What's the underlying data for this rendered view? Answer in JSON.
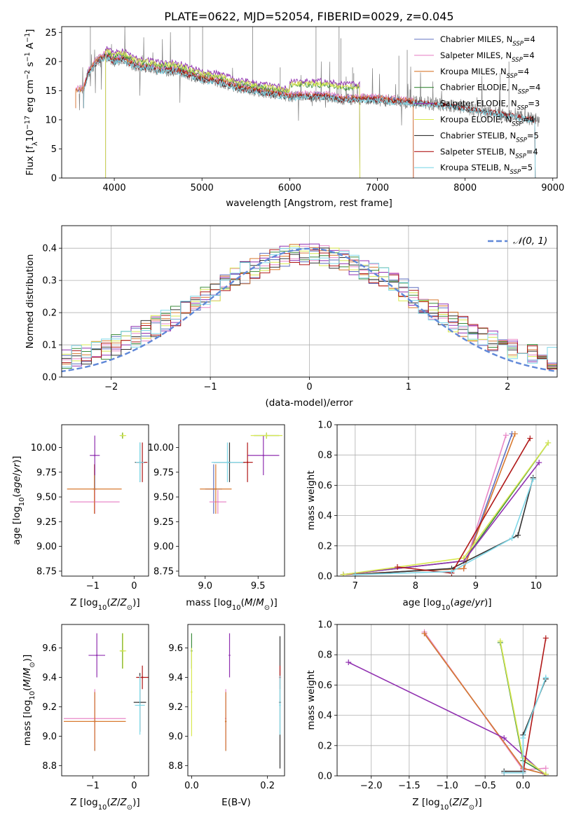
{
  "colors": {
    "chabrier_miles": "#6070c0",
    "salpeter_miles": "#e888c8",
    "kroupa_miles": "#d87a30",
    "chabrier_elodie": "#3c8c3c",
    "salpeter_elodie": "#9030b0",
    "kroupa_elodie": "#d8e850",
    "chabrier_stelib": "#333333",
    "salpeter_stelib": "#b01818",
    "kroupa_stelib": "#80d8e8",
    "data": "#808080",
    "normal": "#6088d8"
  },
  "chart_data": [
    {
      "id": "spectrum",
      "type": "line",
      "title": "PLATE=0622, MJD=52054, FIBERID=0029, z=0.045",
      "xlabel": "wavelength [Angstrom, rest frame]",
      "ylabel": "Flux [f_λ 10^-17 erg cm^-2 s^-1 A^-1]",
      "xlim": [
        3400,
        9050
      ],
      "ylim": [
        0,
        26
      ],
      "xticks": [
        4000,
        5000,
        6000,
        7000,
        8000,
        9000
      ],
      "yticks": [
        0,
        5,
        10,
        15,
        20,
        25
      ],
      "grid": false,
      "legend_position": "top-right",
      "legend": [
        {
          "key": "chabrier_miles",
          "label": "Chabrier MILES, N",
          "sub": "SSP",
          "tail": "=4"
        },
        {
          "key": "salpeter_miles",
          "label": "Salpeter MILES, N",
          "sub": "SSP",
          "tail": "=4"
        },
        {
          "key": "kroupa_miles",
          "label": "Kroupa MILES, N",
          "sub": "SSP",
          "tail": "=4"
        },
        {
          "key": "chabrier_elodie",
          "label": "Chabrier ELODIE, N",
          "sub": "SSP",
          "tail": "=4"
        },
        {
          "key": "salpeter_elodie",
          "label": "Salpeter ELODIE, N",
          "sub": "SSP",
          "tail": "=3"
        },
        {
          "key": "kroupa_elodie",
          "label": "Kroupa ELODIE, N",
          "sub": "SSP",
          "tail": "=4"
        },
        {
          "key": "chabrier_stelib",
          "label": "Chabrier STELIB, N",
          "sub": "SSP",
          "tail": "=5"
        },
        {
          "key": "salpeter_stelib",
          "label": "Salpeter STELIB, N",
          "sub": "SSP",
          "tail": "=4"
        },
        {
          "key": "kroupa_stelib",
          "label": "Kroupa STELIB, N",
          "sub": "SSP",
          "tail": "=5"
        }
      ],
      "continuum": {
        "x": [
          3650,
          3700,
          3800,
          3900,
          4000,
          4100,
          4200,
          4300,
          4400,
          4500,
          4700,
          4900,
          5000,
          5200,
          5400,
          5600,
          5800,
          6000,
          6200,
          6400,
          6600,
          6800,
          7000,
          7200,
          7400,
          7600,
          7800,
          8000,
          8200,
          8400,
          8600,
          8800
        ],
        "y": [
          15,
          18,
          20,
          21,
          20,
          20.5,
          19.5,
          19,
          19,
          18.5,
          18.5,
          17.5,
          17,
          16.5,
          15.5,
          15,
          14.5,
          14,
          14,
          14,
          13.5,
          13.5,
          13.5,
          13.2,
          13,
          12.8,
          12.5,
          12,
          11.5,
          11,
          10.5,
          10
        ]
      },
      "model_ranges": {
        "miles": [
          3540,
          7410
        ],
        "elodie": [
          3900,
          6800
        ],
        "stelib": [
          3650,
          8800
        ]
      }
    },
    {
      "id": "residuals",
      "type": "histogram",
      "xlabel": "(data-model)/error",
      "ylabel": "Normed distribution",
      "xlim": [
        -2.5,
        2.5
      ],
      "ylim": [
        0,
        0.47
      ],
      "xticks": [
        -2,
        -1,
        0,
        1,
        2
      ],
      "yticks": [
        0.0,
        0.1,
        0.2,
        0.3,
        0.4
      ],
      "grid": true,
      "bin_width": 0.1,
      "legend": {
        "label": "𝒩(0, 1)"
      },
      "normal_curve": {
        "mean": 0,
        "sigma": 1
      }
    },
    {
      "id": "age_vs_Z",
      "type": "scatter",
      "xlabel": "Z [log10(Z/Z⊙)]",
      "ylabel": "age [log10(age/yr)]",
      "xlim": [
        -1.75,
        0.35
      ],
      "ylim": [
        8.7,
        10.23
      ],
      "xticks": [
        -1,
        0
      ],
      "yticks": [
        8.75,
        9.0,
        9.25,
        9.5,
        9.75,
        10.0
      ],
      "series": [
        {
          "key": "chabrier_miles",
          "x": -0.95,
          "xerr": 0.05,
          "y": 9.58,
          "yerr": 0.25
        },
        {
          "key": "salpeter_miles",
          "x": -0.95,
          "xerr": 0.6,
          "y": 9.45,
          "yerr": 0.12
        },
        {
          "key": "kroupa_miles",
          "x": -0.96,
          "xerr": 0.66,
          "y": 9.58,
          "yerr": 0.25
        },
        {
          "key": "chabrier_elodie",
          "x": -0.28,
          "xerr": 0.05,
          "y": 10.12,
          "yerr": 0.03
        },
        {
          "key": "salpeter_elodie",
          "x": -0.95,
          "xerr": 0.12,
          "y": 9.92,
          "yerr": 0.2
        },
        {
          "key": "kroupa_elodie",
          "x": -0.27,
          "xerr": 0.08,
          "y": 10.12,
          "yerr": 0.03
        },
        {
          "key": "chabrier_stelib",
          "x": 0.14,
          "xerr": 0.12,
          "y": 9.85,
          "yerr": 0.2
        },
        {
          "key": "salpeter_stelib",
          "x": 0.2,
          "xerr": 0.12,
          "y": 9.85,
          "yerr": 0.2
        },
        {
          "key": "kroupa_stelib",
          "x": 0.14,
          "xerr": 0.1,
          "y": 9.85,
          "yerr": 0.2
        }
      ]
    },
    {
      "id": "age_vs_mass",
      "type": "scatter",
      "xlabel": "mass [log10(M/M⊙)]",
      "xlim": [
        8.75,
        9.75
      ],
      "ylim": [
        8.7,
        10.23
      ],
      "xticks": [
        9.0,
        9.5
      ],
      "yticks": [
        8.75,
        9.0,
        9.25,
        9.5,
        9.75,
        10.0
      ],
      "series": [
        {
          "key": "chabrier_miles",
          "x": 9.08,
          "xerr": 0.08,
          "y": 9.58,
          "yerr": 0.25
        },
        {
          "key": "salpeter_miles",
          "x": 9.12,
          "xerr": 0.08,
          "y": 9.45,
          "yerr": 0.12
        },
        {
          "key": "kroupa_miles",
          "x": 9.1,
          "xerr": 0.15,
          "y": 9.58,
          "yerr": 0.25
        },
        {
          "key": "chabrier_elodie",
          "x": 9.58,
          "xerr": 0.12,
          "y": 10.12,
          "yerr": 0.03
        },
        {
          "key": "salpeter_elodie",
          "x": 9.55,
          "xerr": 0.15,
          "y": 9.92,
          "yerr": 0.2
        },
        {
          "key": "kroupa_elodie",
          "x": 9.58,
          "xerr": 0.15,
          "y": 10.12,
          "yerr": 0.03
        },
        {
          "key": "chabrier_stelib",
          "x": 9.23,
          "xerr": 0.15,
          "y": 9.85,
          "yerr": 0.2
        },
        {
          "key": "salpeter_stelib",
          "x": 9.4,
          "xerr": 0.05,
          "y": 9.85,
          "yerr": 0.2
        },
        {
          "key": "kroupa_stelib",
          "x": 9.21,
          "xerr": 0.15,
          "y": 9.85,
          "yerr": 0.2
        }
      ]
    },
    {
      "id": "massweight_vs_age",
      "type": "line",
      "xlabel": "age [log10(age/yr)]",
      "ylabel": "mass weight",
      "xlim": [
        6.7,
        10.35
      ],
      "ylim": [
        0,
        1.0
      ],
      "xticks": [
        7,
        8,
        9,
        10
      ],
      "yticks": [
        0.0,
        0.2,
        0.4,
        0.6,
        0.8,
        1.0
      ],
      "grid": true,
      "series": [
        {
          "key": "chabrier_miles",
          "x": [
            6.8,
            8.8,
            9.6
          ],
          "y": [
            0.01,
            0.05,
            0.94
          ]
        },
        {
          "key": "salpeter_miles",
          "x": [
            6.8,
            8.8,
            9.5
          ],
          "y": [
            0.01,
            0.05,
            0.93
          ]
        },
        {
          "key": "kroupa_miles",
          "x": [
            6.8,
            8.8,
            9.65
          ],
          "y": [
            0.01,
            0.05,
            0.94
          ]
        },
        {
          "key": "chabrier_elodie",
          "x": [
            6.8,
            8.8,
            10.2
          ],
          "y": [
            0.01,
            0.1,
            0.88
          ]
        },
        {
          "key": "salpeter_elodie",
          "x": [
            6.8,
            8.8,
            10.05
          ],
          "y": [
            0.01,
            0.1,
            0.75
          ]
        },
        {
          "key": "kroupa_elodie",
          "x": [
            6.8,
            8.8,
            10.2
          ],
          "y": [
            0.01,
            0.12,
            0.88
          ]
        },
        {
          "key": "chabrier_stelib",
          "x": [
            7.0,
            8.6,
            9.7,
            9.95
          ],
          "y": [
            0.01,
            0.05,
            0.27,
            0.65
          ]
        },
        {
          "key": "salpeter_stelib",
          "x": [
            7.7,
            8.6,
            9.9
          ],
          "y": [
            0.06,
            0.02,
            0.91
          ]
        },
        {
          "key": "kroupa_stelib",
          "x": [
            7.0,
            8.6,
            9.6,
            9.95
          ],
          "y": [
            0.01,
            0.03,
            0.25,
            0.64
          ]
        }
      ]
    },
    {
      "id": "mass_vs_Z",
      "type": "scatter",
      "xlabel": "Z [log10(Z/Z⊙)]",
      "ylabel": "mass [log10(M/M⊙)]",
      "xlim": [
        -1.75,
        0.35
      ],
      "ylim": [
        8.73,
        9.76
      ],
      "xticks": [
        -1,
        0
      ],
      "yticks": [
        8.8,
        9.0,
        9.2,
        9.4,
        9.6
      ],
      "series": [
        {
          "key": "chabrier_miles",
          "x": -0.95,
          "xerr": 0.05,
          "y": 9.1,
          "yerr": 0.2
        },
        {
          "key": "salpeter_miles",
          "x": -0.95,
          "xerr": 0.75,
          "y": 9.12,
          "yerr": 0.2
        },
        {
          "key": "kroupa_miles",
          "x": -0.95,
          "xerr": 0.75,
          "y": 9.1,
          "yerr": 0.2
        },
        {
          "key": "chabrier_elodie",
          "x": -0.28,
          "xerr": 0.05,
          "y": 9.58,
          "yerr": 0.12
        },
        {
          "key": "salpeter_elodie",
          "x": -0.9,
          "xerr": 0.2,
          "y": 9.55,
          "yerr": 0.15
        },
        {
          "key": "kroupa_elodie",
          "x": -0.27,
          "xerr": 0.08,
          "y": 9.58,
          "yerr": 0.12
        },
        {
          "key": "chabrier_stelib",
          "x": 0.14,
          "xerr": 0.15,
          "y": 9.23,
          "yerr": 0.2
        },
        {
          "key": "salpeter_stelib",
          "x": 0.2,
          "xerr": 0.15,
          "y": 9.4,
          "yerr": 0.08
        },
        {
          "key": "kroupa_stelib",
          "x": 0.14,
          "xerr": 0.12,
          "y": 9.21,
          "yerr": 0.2
        }
      ]
    },
    {
      "id": "mass_vs_ebv",
      "type": "scatter",
      "xlabel": "E(B-V)",
      "xlim": [
        -0.01,
        0.245
      ],
      "ylim": [
        8.73,
        9.76
      ],
      "xticks": [
        0.0,
        0.2
      ],
      "yticks": [
        8.8,
        9.0,
        9.2,
        9.4,
        9.6
      ],
      "series": [
        {
          "key": "chabrier_miles",
          "x": 0.09,
          "y": 9.1,
          "yerr": 0.2
        },
        {
          "key": "salpeter_miles",
          "x": 0.09,
          "y": 9.12,
          "yerr": 0.2
        },
        {
          "key": "kroupa_miles",
          "x": 0.09,
          "y": 9.1,
          "yerr": 0.2
        },
        {
          "key": "chabrier_elodie",
          "x": 0.0,
          "y": 9.58,
          "yerr": 0.12
        },
        {
          "key": "salpeter_elodie",
          "x": 0.1,
          "y": 9.55,
          "yerr": 0.15
        },
        {
          "key": "kroupa_elodie",
          "x": 0.0,
          "y": 9.3,
          "yerr": 0.3
        },
        {
          "key": "chabrier_stelib",
          "x": 0.233,
          "y": 9.23,
          "yerr": 0.45
        },
        {
          "key": "salpeter_stelib",
          "x": 0.233,
          "y": 9.4,
          "yerr": 0.08
        },
        {
          "key": "kroupa_stelib",
          "x": 0.233,
          "y": 9.21,
          "yerr": 0.2
        }
      ]
    },
    {
      "id": "massweight_vs_Z",
      "type": "line",
      "xlabel": "Z [log10(Z/Z⊙)]",
      "ylabel": "mass weight",
      "xlim": [
        -2.45,
        0.45
      ],
      "ylim": [
        0,
        1.0
      ],
      "xticks": [
        -2.0,
        -1.5,
        -1.0,
        -0.5,
        0.0
      ],
      "yticks": [
        0.0,
        0.2,
        0.4,
        0.6,
        0.8,
        1.0
      ],
      "grid": true,
      "series": [
        {
          "key": "chabrier_miles",
          "x": [
            -1.3,
            0.0,
            0.3
          ],
          "y": [
            0.94,
            0.05,
            0.01
          ]
        },
        {
          "key": "salpeter_miles",
          "x": [
            -1.3,
            0.0,
            0.3
          ],
          "y": [
            0.95,
            0.04,
            0.05
          ]
        },
        {
          "key": "kroupa_miles",
          "x": [
            -1.3,
            0.0,
            0.3
          ],
          "y": [
            0.94,
            0.05,
            0.01
          ]
        },
        {
          "key": "chabrier_elodie",
          "x": [
            -0.3,
            0.0,
            0.3
          ],
          "y": [
            0.88,
            0.1,
            0.01
          ]
        },
        {
          "key": "salpeter_elodie",
          "x": [
            -2.3,
            -0.25,
            0.3
          ],
          "y": [
            0.75,
            0.25,
            0.0
          ]
        },
        {
          "key": "kroupa_elodie",
          "x": [
            -0.3,
            0.0,
            0.3
          ],
          "y": [
            0.89,
            0.12,
            0.01
          ]
        },
        {
          "key": "chabrier_stelib",
          "x": [
            -0.25,
            0.0,
            0.0,
            0.3
          ],
          "y": [
            0.03,
            0.03,
            0.27,
            0.64
          ]
        },
        {
          "key": "salpeter_stelib",
          "x": [
            -0.25,
            0.0,
            0.3
          ],
          "y": [
            0.02,
            0.02,
            0.91
          ]
        },
        {
          "key": "kroupa_stelib",
          "x": [
            -0.25,
            0.0,
            0.0,
            0.3
          ],
          "y": [
            0.02,
            0.02,
            0.25,
            0.65
          ]
        }
      ]
    }
  ]
}
